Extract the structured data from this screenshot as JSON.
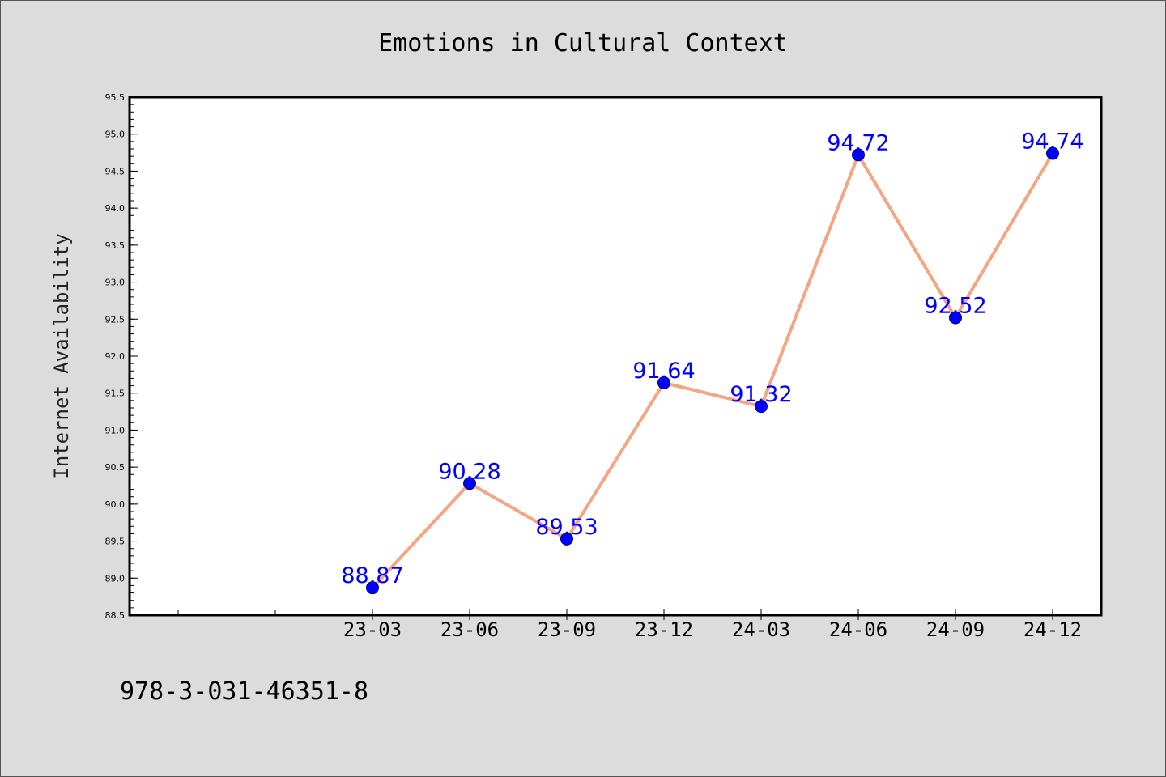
{
  "isbn": "978-3-031-46351-8",
  "chart_data": {
    "type": "line",
    "title": "Emotions in Cultural Context",
    "xlabel": "",
    "ylabel": "Internet Availability",
    "categories": [
      "23-03",
      "23-06",
      "23-09",
      "23-12",
      "24-03",
      "24-06",
      "24-09",
      "24-12"
    ],
    "values": [
      88.87,
      90.28,
      89.53,
      91.64,
      91.32,
      94.72,
      92.52,
      94.74
    ],
    "data_labels": [
      "88.87",
      "90.28",
      "89.53",
      "91.64",
      "91.32",
      "94.72",
      "92.52",
      "94.74"
    ],
    "yticks": [
      "88.5",
      "89.0",
      "89.5",
      "90.0",
      "90.5",
      "91.0",
      "91.5",
      "92.0",
      "92.5",
      "93.0",
      "93.5",
      "94.0",
      "94.5",
      "95.0",
      "95.5"
    ],
    "ylim": [
      88.5,
      95.5
    ],
    "grid": false,
    "legend": "none",
    "colors": {
      "line": "#f4a582",
      "marker": "#0000ff",
      "marker_edge": "#000080",
      "label": "#0000ff",
      "plot_background": "#ffffff",
      "figure_background": "#dcdcdc"
    }
  }
}
